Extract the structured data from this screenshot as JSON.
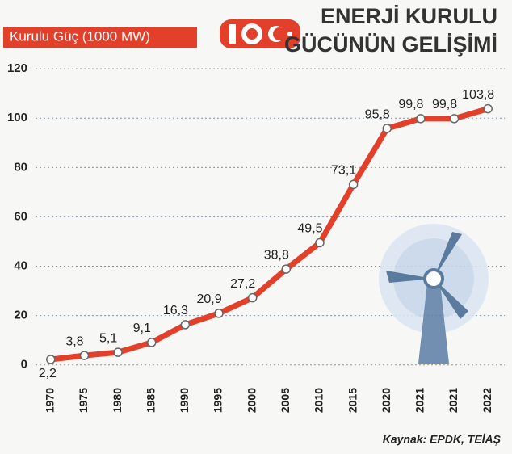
{
  "chart_data": {
    "type": "line",
    "title": [
      "ENERJİ KURULU",
      "GÜCÜNÜN GELİŞİMİ"
    ],
    "subtitle": "Kurulu Güç (1000 MW)",
    "source": "Kaynak: EPDK, TEİAŞ",
    "categories": [
      "1970",
      "1975",
      "1980",
      "1985",
      "1990",
      "1995",
      "2000",
      "2005",
      "2010",
      "2015",
      "2020",
      "2021",
      "2021",
      "2022"
    ],
    "values": [
      2.2,
      3.8,
      5.1,
      9.1,
      16.3,
      20.9,
      27.2,
      38.8,
      49.5,
      73.1,
      95.8,
      99.8,
      99.8,
      103.8
    ],
    "value_labels": [
      "2,2",
      "3,8",
      "5,1",
      "9,1",
      "16,3",
      "20,9",
      "27,2",
      "38,8",
      "49,5",
      "73,1",
      "95,8",
      "99,8",
      "99,8",
      "103,8"
    ],
    "color": "#e2402a",
    "ylim": [
      -5,
      122
    ],
    "yticks": [
      0,
      20,
      40,
      60,
      80,
      100,
      120
    ],
    "grid": true
  }
}
